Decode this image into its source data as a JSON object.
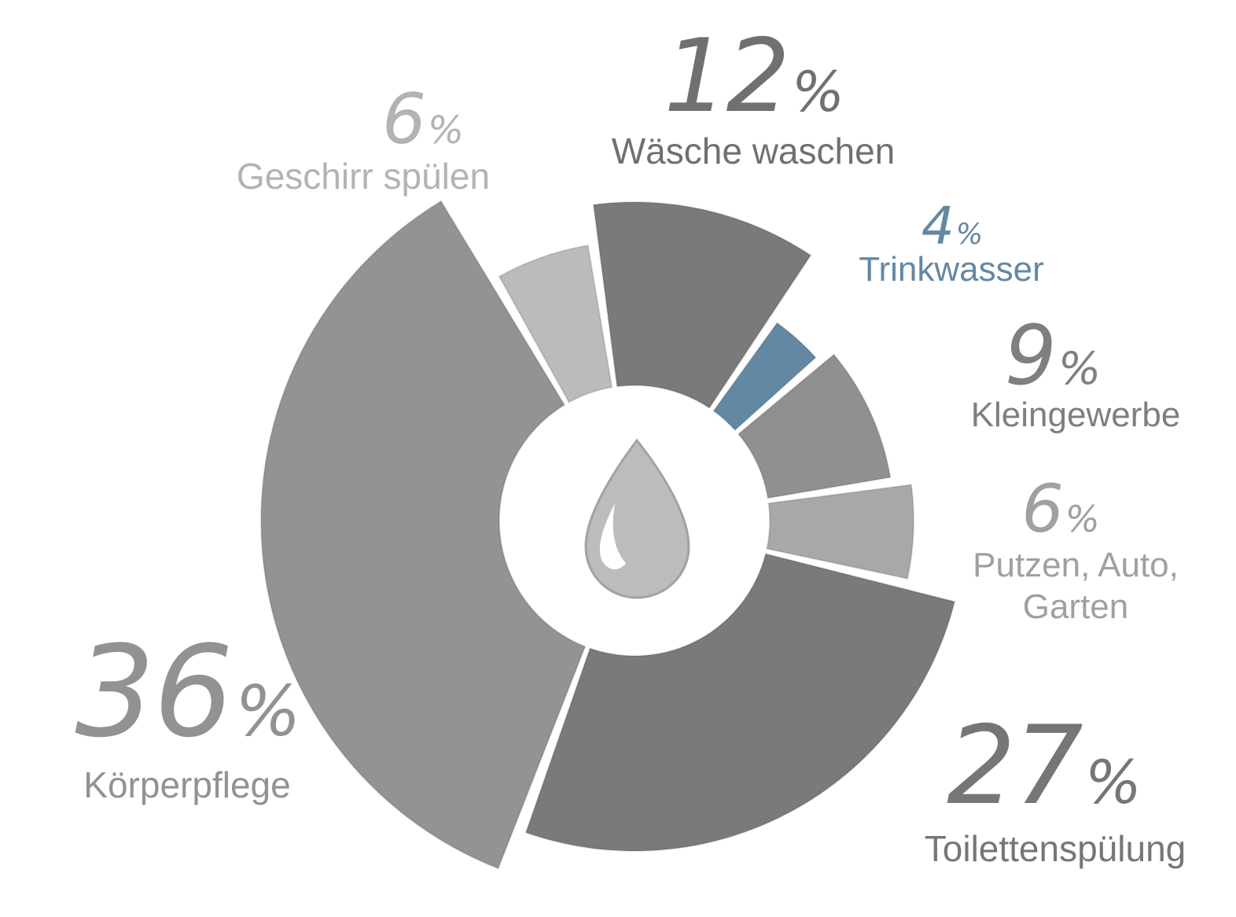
{
  "chart_data": {
    "type": "pie",
    "title": "",
    "center_icon": "water-drop-icon",
    "slices": [
      {
        "label": "Wäsche waschen",
        "value": 12,
        "pct": "12",
        "color": "#7a7a7a"
      },
      {
        "label": "Trinkwasser",
        "value": 4,
        "pct": "4",
        "color": "#6388a3"
      },
      {
        "label": "Kleingewerbe",
        "value": 9,
        "pct": "9",
        "color": "#909090"
      },
      {
        "label": "Putzen, Auto, Garten",
        "value": 6,
        "pct": "6",
        "color": "#a8a8a8"
      },
      {
        "label": "Toilettenspülung",
        "value": 27,
        "pct": "27",
        "color": "#7a7a7a"
      },
      {
        "label": "Körperpflege",
        "value": 36,
        "pct": "36",
        "color": "#939393"
      },
      {
        "label": "Geschirr spülen",
        "value": 6,
        "pct": "6",
        "color": "#bbbbba"
      }
    ],
    "percent_sign": "%"
  }
}
